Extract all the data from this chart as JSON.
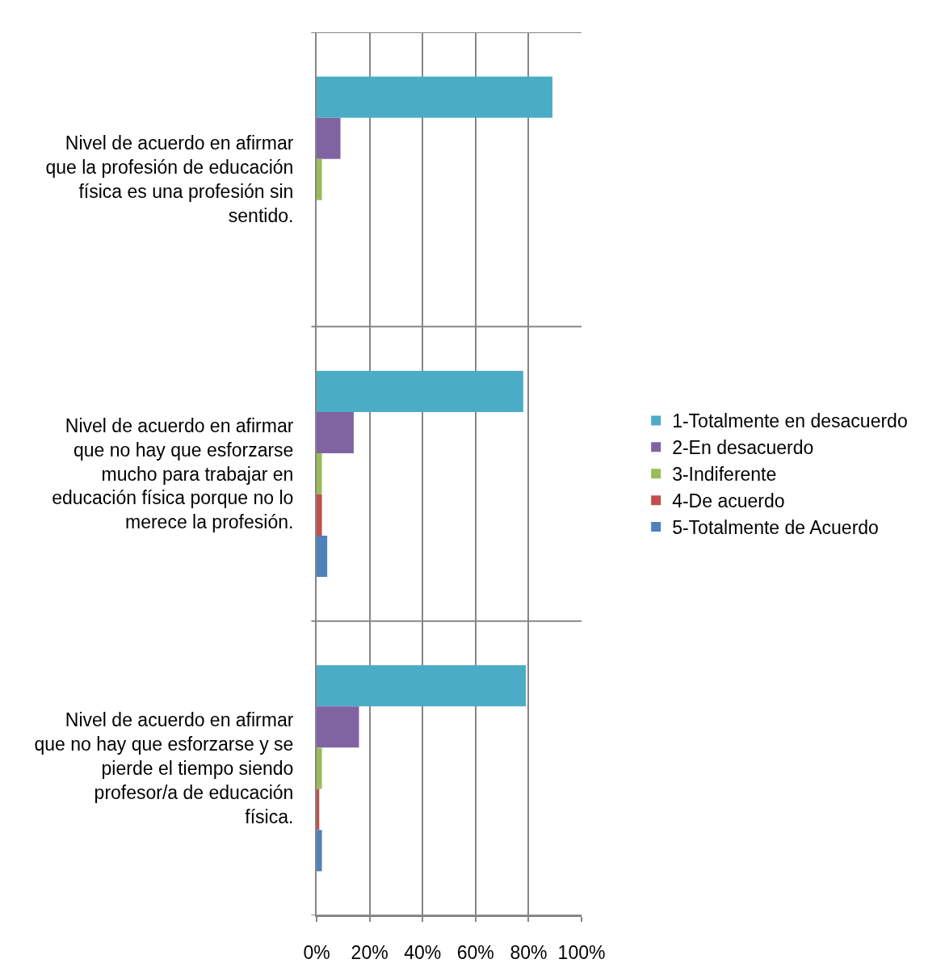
{
  "chart_data": {
    "type": "bar",
    "orientation": "horizontal",
    "categories": [
      "Nivel de acuerdo en afirmar que la profesión de educación física es una profesión sin sentido.",
      "Nivel de acuerdo en afirmar que no hay que esforzarse mucho para trabajar en educación física porque no lo merece la profesión.",
      "Nivel de acuerdo en afirmar que no hay que esforzarse y se pierde el tiempo siendo profesor/a de educación física."
    ],
    "series": [
      {
        "name": "1-Totalmente en desacuerdo",
        "color": "#4bacc6",
        "values": [
          89,
          78,
          79
        ]
      },
      {
        "name": "2-En desacuerdo",
        "color": "#8064a2",
        "values": [
          9,
          14,
          16
        ]
      },
      {
        "name": "3-Indiferente",
        "color": "#9bbb59",
        "values": [
          2,
          2,
          2
        ]
      },
      {
        "name": "4-De acuerdo",
        "color": "#c0504d",
        "values": [
          0,
          2,
          1
        ]
      },
      {
        "name": "5-Totalmente de Acuerdo",
        "color": "#4f81bd",
        "values": [
          0,
          4,
          2
        ]
      }
    ],
    "xlim": [
      0,
      100
    ],
    "xticks": [
      {
        "value": 0,
        "label": "0%"
      },
      {
        "value": 20,
        "label": "20%"
      },
      {
        "value": 40,
        "label": "40%"
      },
      {
        "value": 60,
        "label": "60%"
      },
      {
        "value": 80,
        "label": "80%"
      },
      {
        "value": 100,
        "label": "100%"
      }
    ],
    "grid": true,
    "legend": "right"
  }
}
